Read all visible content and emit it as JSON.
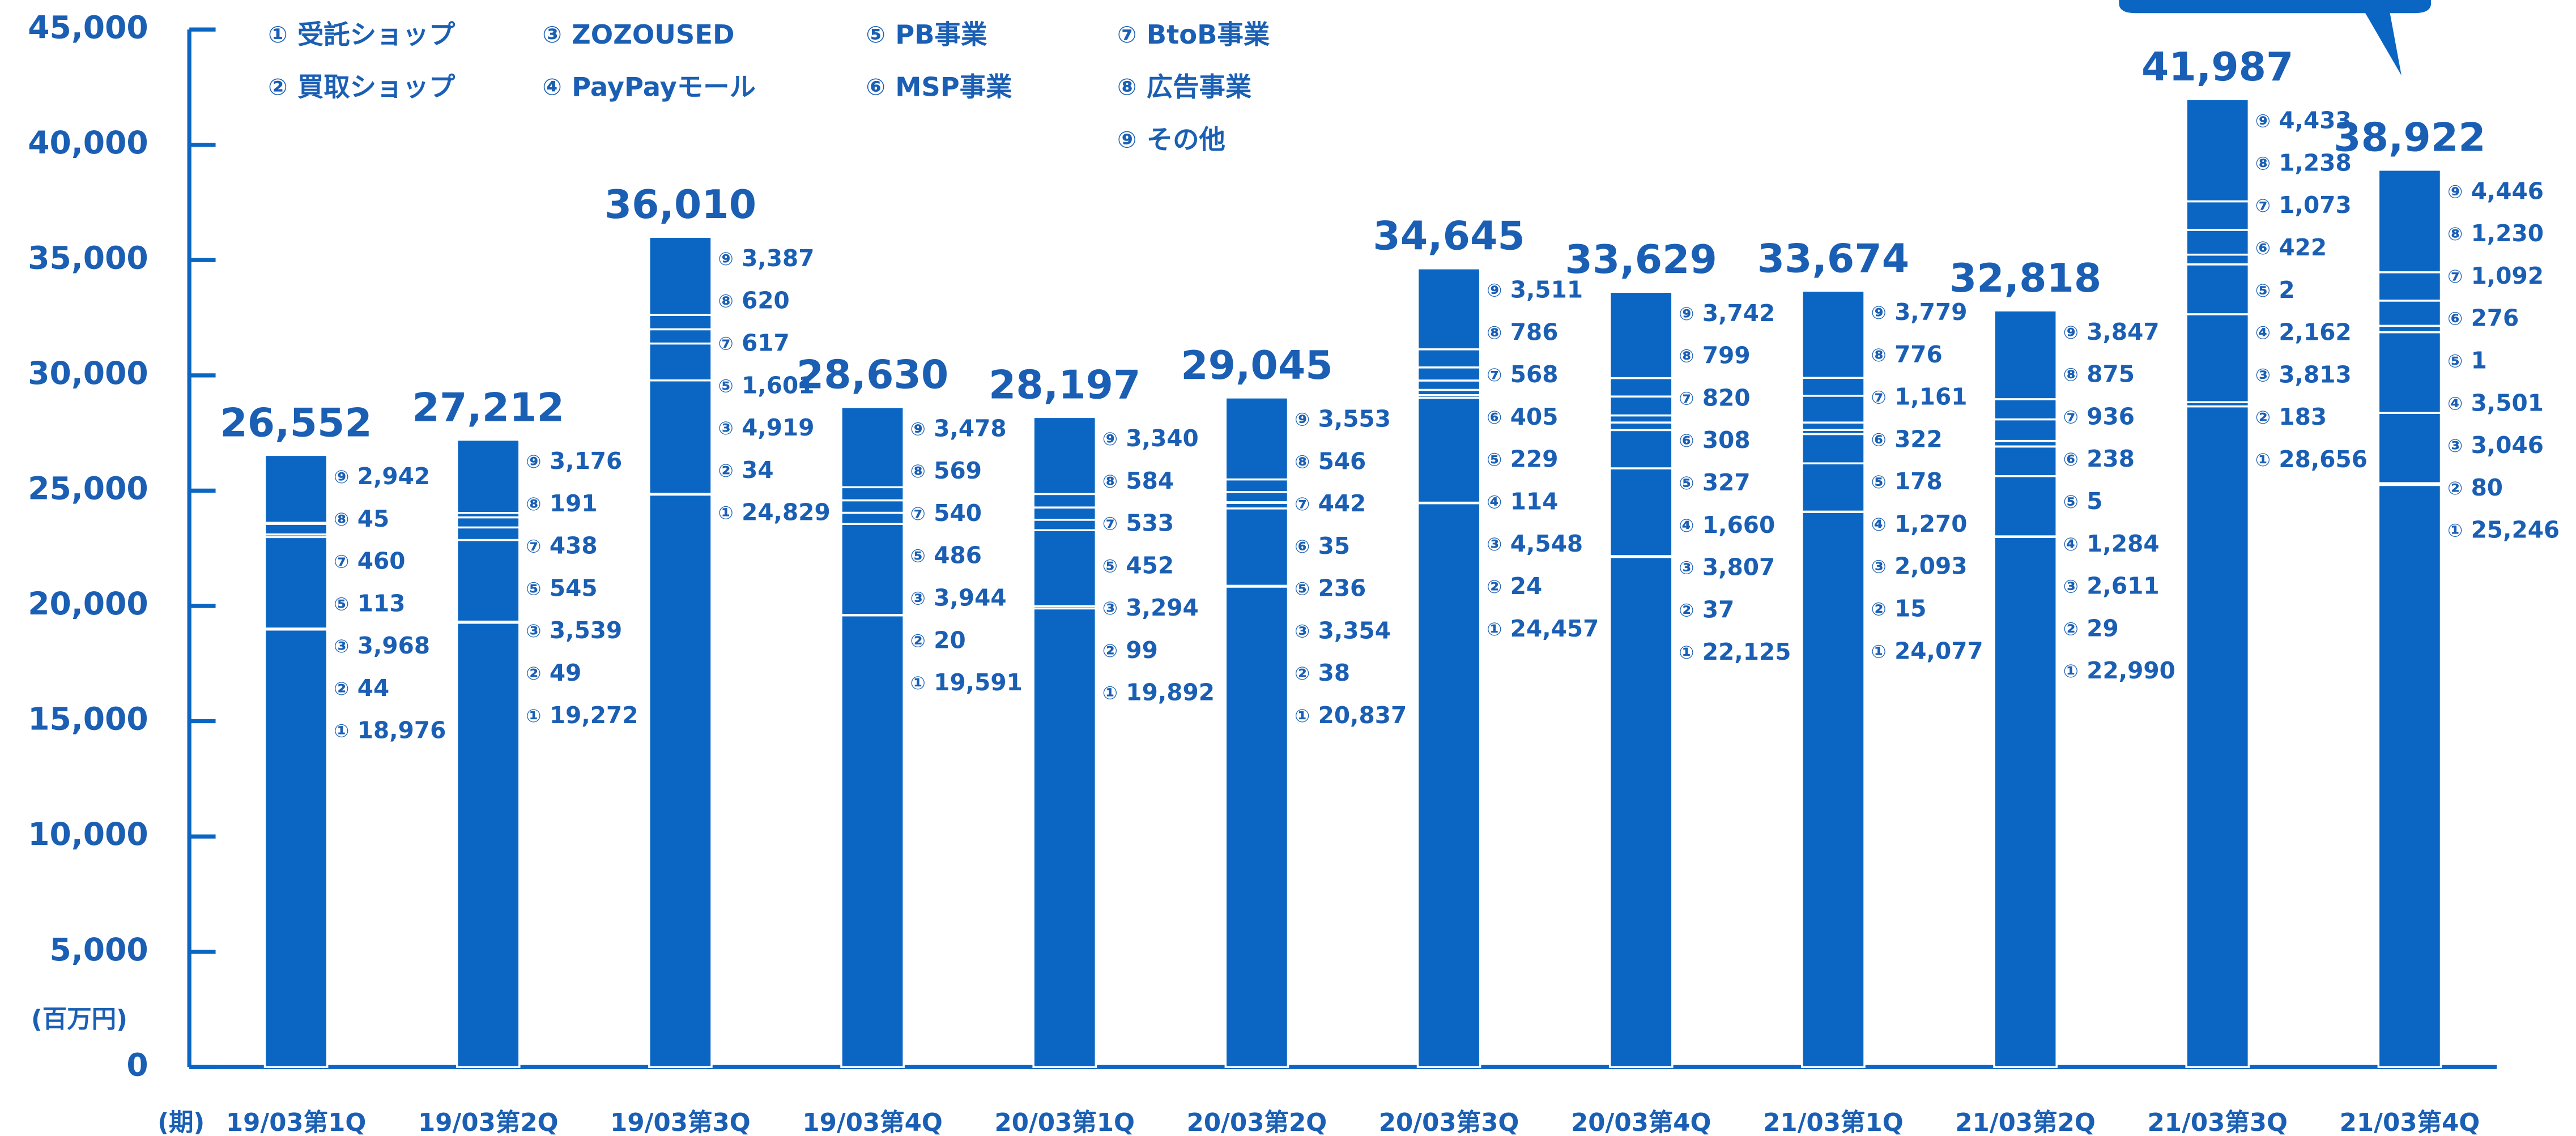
{
  "chart_data": {
    "type": "stacked_bar",
    "y_axis_label": "(百万円)",
    "x_axis_label": "(期)",
    "color": "#0a66c2",
    "text_color": "#1a5fb4",
    "categories": [
      "19/03第1Q",
      "19/03第2Q",
      "19/03第3Q",
      "19/03第4Q",
      "20/03第1Q",
      "20/03第2Q",
      "20/03第3Q",
      "20/03第4Q",
      "21/03第1Q",
      "21/03第2Q",
      "21/03第3Q",
      "21/03第4Q"
    ],
    "totals": [
      26552,
      27212,
      36010,
      28630,
      28197,
      29045,
      34645,
      33629,
      33674,
      32818,
      41987,
      38922
    ],
    "total_labels": [
      "26,552",
      "27,212",
      "36,010",
      "28,630",
      "28,197",
      "29,045",
      "34,645",
      "33,629",
      "33,674",
      "32,818",
      "41,987",
      "38,922"
    ],
    "series": [
      {
        "symbol": "①",
        "name": "受託ショップ",
        "values": [
          18976,
          19272,
          24829,
          19591,
          19892,
          20837,
          24457,
          22125,
          24077,
          22990,
          28656,
          25246
        ],
        "value_labels": [
          "18,976",
          "19,272",
          "24,829",
          "19,591",
          "19,892",
          "20,837",
          "24,457",
          "22,125",
          "24,077",
          "22,990",
          "28,656",
          "25,246"
        ]
      },
      {
        "symbol": "②",
        "name": "買取ショップ",
        "values": [
          44,
          49,
          34,
          20,
          99,
          38,
          24,
          37,
          15,
          29,
          183,
          80
        ]
      },
      {
        "symbol": "③",
        "name": "ZOZOUSED",
        "values": [
          3968,
          3539,
          4919,
          3944,
          3294,
          3354,
          4548,
          3807,
          2093,
          2611,
          3813,
          3046
        ],
        "value_labels": [
          "3,968",
          "3,539",
          "4,919",
          "3,944",
          "3,294",
          "3,354",
          "4,548",
          "3,807",
          "2,093",
          "2,611",
          "3,813",
          "3,046"
        ]
      },
      {
        "symbol": "④",
        "name": "PayPayモール",
        "values": [
          null,
          null,
          null,
          null,
          null,
          null,
          114,
          1660,
          1270,
          1284,
          2162,
          3501
        ],
        "value_labels": [
          null,
          null,
          null,
          null,
          null,
          null,
          "114",
          "1,660",
          "1,270",
          "1,284",
          "2,162",
          "3,501"
        ]
      },
      {
        "symbol": "⑤",
        "name": "PB事業",
        "values": [
          113,
          545,
          1601,
          486,
          452,
          236,
          229,
          327,
          178,
          5,
          2,
          1
        ],
        "value_labels": [
          "113",
          "545",
          "1,601",
          "486",
          "452",
          "236",
          "229",
          "327",
          "178",
          "5",
          "2",
          "1"
        ]
      },
      {
        "symbol": "⑥",
        "name": "MSP事業",
        "values": [
          null,
          null,
          null,
          null,
          null,
          35,
          405,
          308,
          322,
          238,
          422,
          276
        ]
      },
      {
        "symbol": "⑦",
        "name": "BtoB事業",
        "values": [
          460,
          438,
          617,
          540,
          533,
          442,
          568,
          820,
          1161,
          936,
          1073,
          1092
        ],
        "value_labels": [
          "460",
          "438",
          "617",
          "540",
          "533",
          "442",
          "568",
          "820",
          "1,161",
          "936",
          "1,073",
          "1,092"
        ]
      },
      {
        "symbol": "⑧",
        "name": "広告事業",
        "values": [
          45,
          191,
          620,
          569,
          584,
          546,
          786,
          799,
          776,
          875,
          1238,
          1230
        ],
        "value_labels": [
          "45",
          "191",
          "620",
          "569",
          "584",
          "546",
          "786",
          "799",
          "776",
          "875",
          "1,238",
          "1,230"
        ]
      },
      {
        "symbol": "⑨",
        "name": "その他",
        "values": [
          2942,
          3176,
          3387,
          3478,
          3340,
          3553,
          3511,
          3742,
          3779,
          3847,
          4433,
          4446
        ],
        "value_labels": [
          "2,942",
          "3,176",
          "3,387",
          "3,478",
          "3,340",
          "3,553",
          "3,511",
          "3,742",
          "3,779",
          "3,847",
          "4,433",
          "4,446"
        ]
      }
    ],
    "ylim": [
      0,
      45000
    ],
    "yticks": [
      0,
      {
        "value": 5000,
        "label": "5,000"
      },
      {
        "value": 10000,
        "label": "10,000"
      },
      {
        "value": 15000,
        "label": "15,000"
      },
      {
        "value": 20000,
        "label": "20,000"
      },
      {
        "value": 25000,
        "label": "25,000"
      },
      {
        "value": 30000,
        "label": "30,000"
      },
      {
        "value": 35000,
        "label": "35,000"
      },
      {
        "value": 40000,
        "label": "40,000"
      },
      {
        "value": 45000,
        "label": "45,000"
      }
    ]
  }
}
